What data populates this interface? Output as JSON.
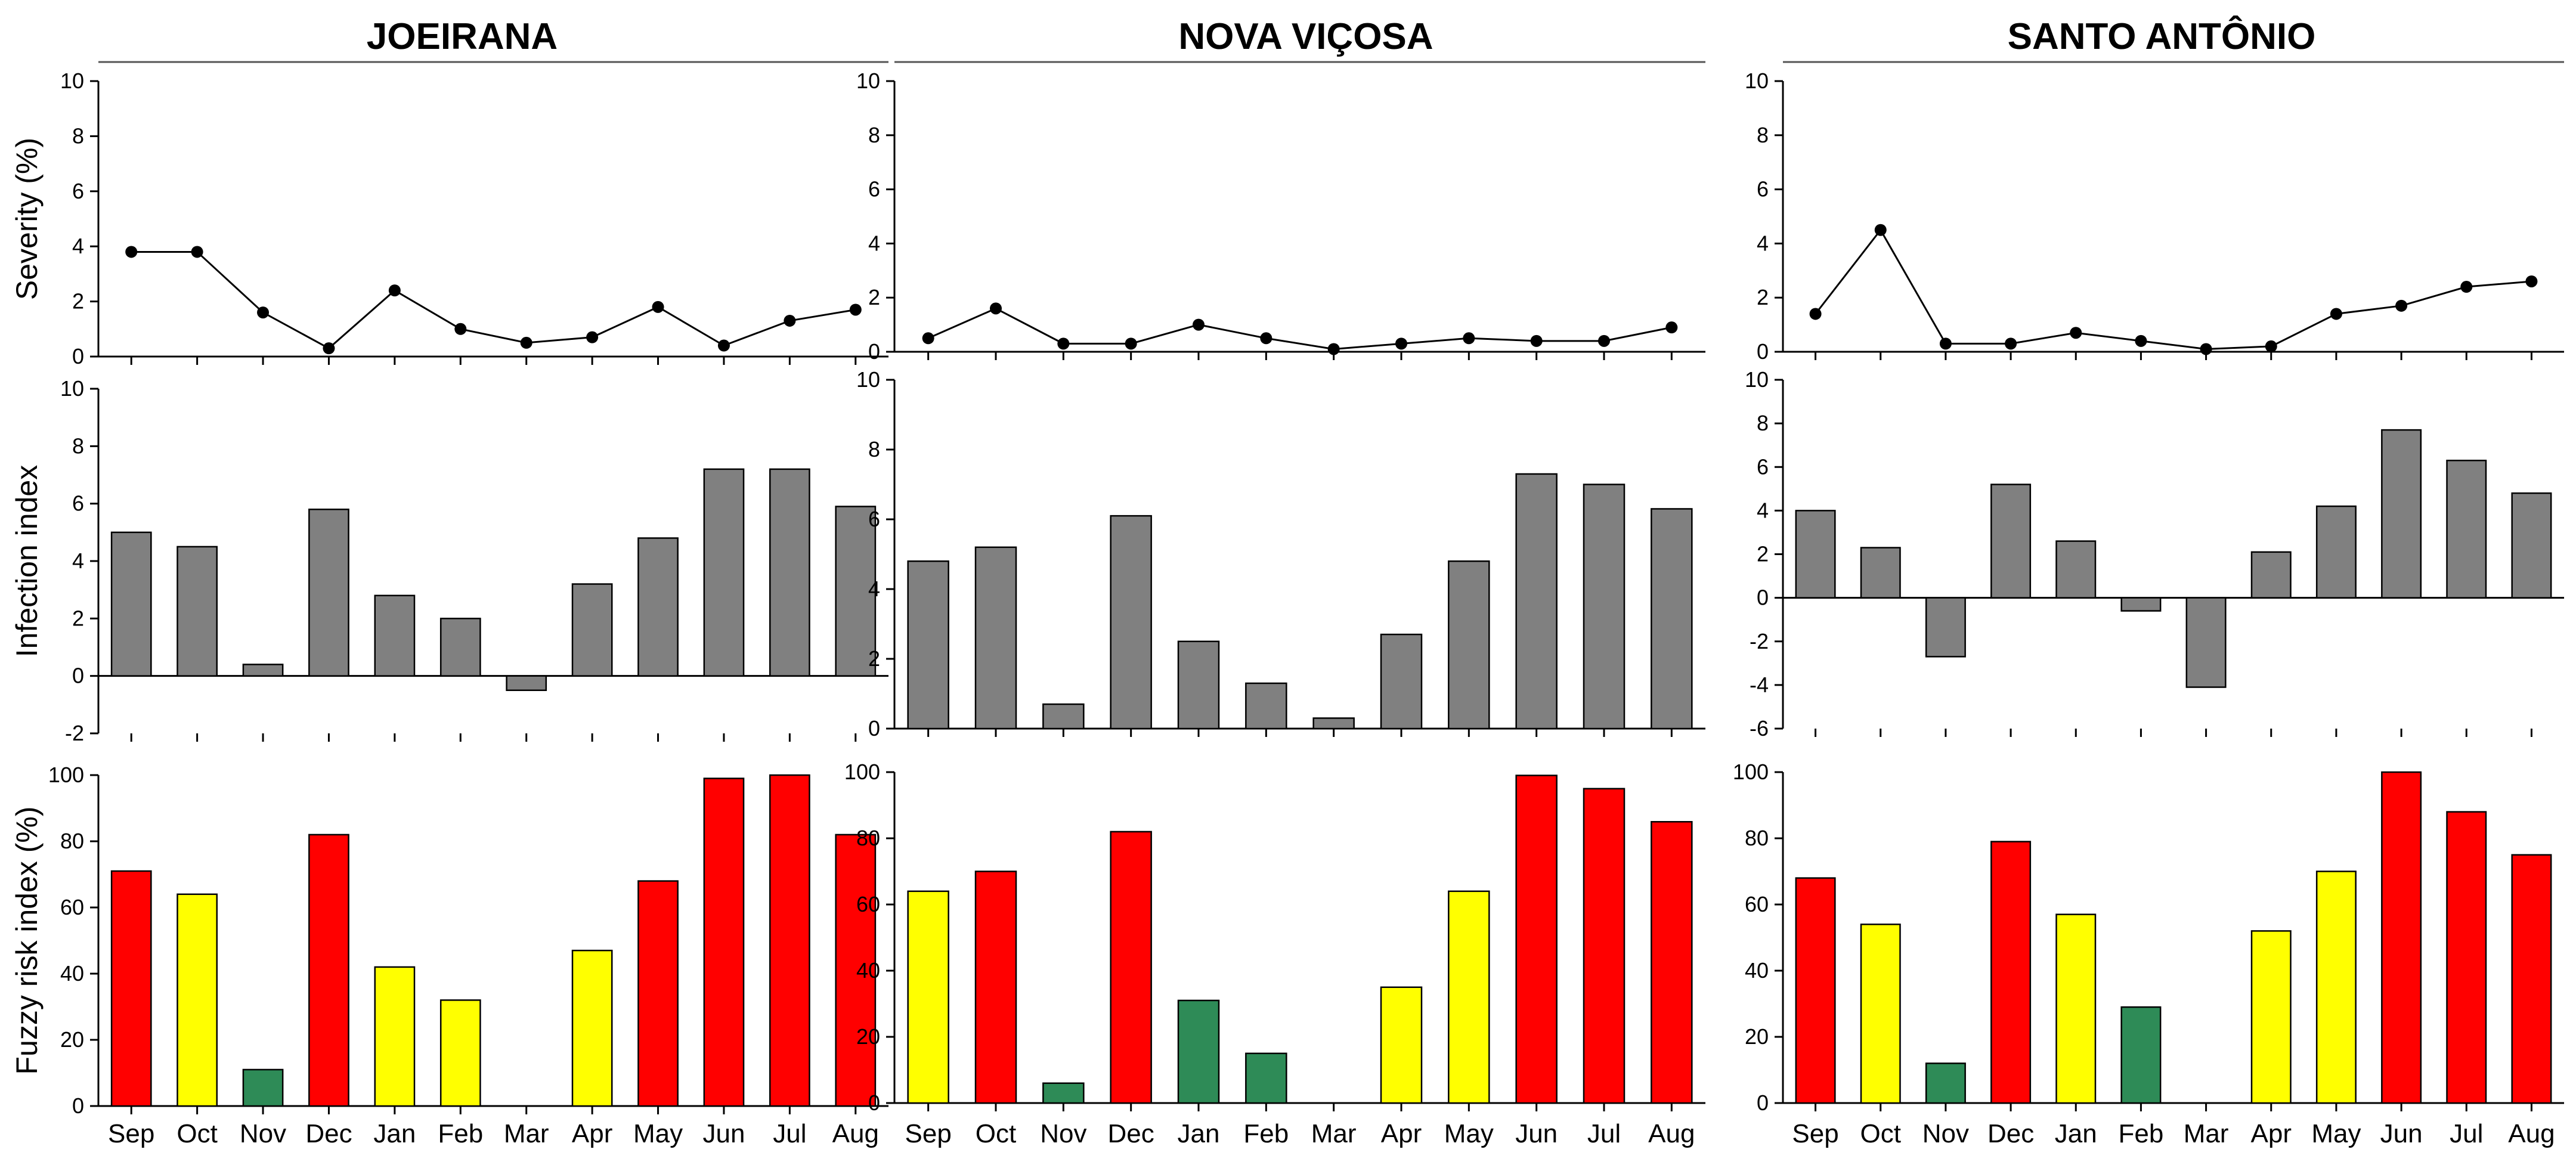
{
  "colors": {
    "high": "#ff0000",
    "moderate": "#ffff00",
    "low": "#2e8b57",
    "infection_bar": "#808080",
    "line": "#000000"
  },
  "chart_data": [
    {
      "type": "line",
      "location": "JOEIRANA",
      "title": "JOEIRANA",
      "panel": "severity",
      "ylabel": "Severity (%)",
      "ylim": [
        0,
        10
      ],
      "yticks": [
        0,
        2,
        4,
        6,
        8,
        10
      ],
      "categories": [
        "Sep",
        "Oct",
        "Nov",
        "Dec",
        "Jan",
        "Feb",
        "Mar",
        "Apr",
        "May",
        "Jun",
        "Jul",
        "Aug"
      ],
      "values": [
        3.8,
        3.8,
        1.6,
        0.3,
        2.4,
        1.0,
        0.5,
        0.7,
        1.8,
        0.4,
        1.3,
        1.7
      ]
    },
    {
      "type": "bar",
      "location": "JOEIRANA",
      "panel": "infection",
      "ylabel": "Infection index",
      "ylim": [
        -2,
        10
      ],
      "yticks": [
        -2,
        0,
        2,
        4,
        6,
        8,
        10
      ],
      "categories": [
        "Sep",
        "Oct",
        "Nov",
        "Dec",
        "Jan",
        "Feb",
        "Mar",
        "Apr",
        "May",
        "Jun",
        "Jul",
        "Aug"
      ],
      "values": [
        5.0,
        4.5,
        0.4,
        5.8,
        2.8,
        2.0,
        -0.5,
        3.2,
        4.8,
        7.2,
        7.2,
        5.9
      ]
    },
    {
      "type": "bar",
      "location": "JOEIRANA",
      "panel": "fuzzy",
      "ylabel": "Fuzzy risk index (%)",
      "ylim": [
        0,
        100
      ],
      "yticks": [
        0,
        20,
        40,
        60,
        80,
        100
      ],
      "categories": [
        "Sep",
        "Oct",
        "Nov",
        "Dec",
        "Jan",
        "Feb",
        "Mar",
        "Apr",
        "May",
        "Jun",
        "Jul",
        "Aug"
      ],
      "values": [
        71,
        64,
        11,
        82,
        42,
        32,
        0,
        47,
        68,
        99,
        100,
        82
      ],
      "risk_class": [
        "high",
        "moderate",
        "low",
        "high",
        "moderate",
        "moderate",
        "none",
        "moderate",
        "high",
        "high",
        "high",
        "high"
      ]
    },
    {
      "type": "line",
      "location": "NOVA VIÇOSA",
      "title": "NOVA VIÇOSA",
      "panel": "severity",
      "ylabel": "",
      "ylim": [
        0,
        10
      ],
      "yticks": [
        0,
        2,
        4,
        6,
        8,
        10
      ],
      "categories": [
        "Sep",
        "Oct",
        "Nov",
        "Dec",
        "Jan",
        "Feb",
        "Mar",
        "Apr",
        "May",
        "Jun",
        "Jul",
        "Aug"
      ],
      "values": [
        0.5,
        1.6,
        0.3,
        0.3,
        1.0,
        0.5,
        0.1,
        0.3,
        0.5,
        0.4,
        0.4,
        0.9
      ]
    },
    {
      "type": "bar",
      "location": "NOVA VIÇOSA",
      "panel": "infection",
      "ylabel": "",
      "ylim": [
        0,
        10
      ],
      "yticks": [
        0,
        2,
        4,
        6,
        8,
        10
      ],
      "categories": [
        "Sep",
        "Oct",
        "Nov",
        "Dec",
        "Jan",
        "Feb",
        "Mar",
        "Apr",
        "May",
        "Jun",
        "Jul",
        "Aug"
      ],
      "values": [
        4.8,
        5.2,
        0.7,
        6.1,
        2.5,
        1.3,
        0.3,
        2.7,
        4.8,
        7.3,
        7.0,
        6.3
      ]
    },
    {
      "type": "bar",
      "location": "NOVA VIÇOSA",
      "panel": "fuzzy",
      "ylabel": "",
      "ylim": [
        0,
        100
      ],
      "yticks": [
        0,
        20,
        40,
        60,
        80,
        100
      ],
      "categories": [
        "Sep",
        "Oct",
        "Nov",
        "Dec",
        "Jan",
        "Feb",
        "Mar",
        "Apr",
        "May",
        "Jun",
        "Jul",
        "Aug"
      ],
      "values": [
        64,
        70,
        6,
        82,
        31,
        15,
        0,
        35,
        64,
        99,
        95,
        85
      ],
      "risk_class": [
        "moderate",
        "high",
        "low",
        "high",
        "low",
        "low",
        "none",
        "moderate",
        "moderate",
        "high",
        "high",
        "high"
      ]
    },
    {
      "type": "line",
      "location": "SANTO ANTÔNIO",
      "title": "SANTO ANTÔNIO",
      "panel": "severity",
      "ylabel": "",
      "ylim": [
        0,
        10
      ],
      "yticks": [
        0,
        2,
        4,
        6,
        8,
        10
      ],
      "categories": [
        "Sep",
        "Oct",
        "Nov",
        "Dec",
        "Jan",
        "Feb",
        "Mar",
        "Apr",
        "May",
        "Jun",
        "Jul",
        "Aug"
      ],
      "values": [
        1.4,
        4.5,
        0.3,
        0.3,
        0.7,
        0.4,
        0.1,
        0.2,
        1.4,
        1.7,
        2.4,
        2.6
      ]
    },
    {
      "type": "bar",
      "location": "SANTO ANTÔNIO",
      "panel": "infection",
      "ylabel": "",
      "ylim": [
        -6,
        10
      ],
      "yticks": [
        -6,
        -4,
        -2,
        0,
        2,
        4,
        6,
        8,
        10
      ],
      "categories": [
        "Sep",
        "Oct",
        "Nov",
        "Dec",
        "Jan",
        "Feb",
        "Mar",
        "Apr",
        "May",
        "Jun",
        "Jul",
        "Aug"
      ],
      "values": [
        4.0,
        2.3,
        -2.7,
        5.2,
        2.6,
        -0.6,
        -4.1,
        2.1,
        4.2,
        7.7,
        6.3,
        4.8
      ]
    },
    {
      "type": "bar",
      "location": "SANTO ANTÔNIO",
      "panel": "fuzzy",
      "ylabel": "",
      "ylim": [
        0,
        100
      ],
      "yticks": [
        0,
        20,
        40,
        60,
        80,
        100
      ],
      "categories": [
        "Sep",
        "Oct",
        "Nov",
        "Dec",
        "Jan",
        "Feb",
        "Mar",
        "Apr",
        "May",
        "Jun",
        "Jul",
        "Aug"
      ],
      "values": [
        68,
        54,
        12,
        79,
        57,
        29,
        0,
        52,
        70,
        100,
        88,
        75
      ],
      "risk_class": [
        "high",
        "moderate",
        "low",
        "high",
        "moderate",
        "low",
        "none",
        "moderate",
        "moderate",
        "high",
        "high",
        "high"
      ]
    }
  ]
}
